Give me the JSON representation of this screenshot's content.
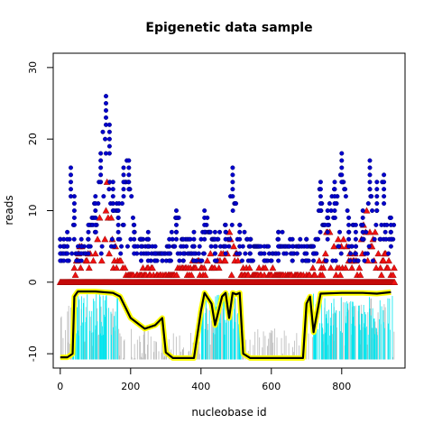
{
  "chart_data": {
    "type": "scatter",
    "title": "Epigenetic data sample",
    "xlabel": "nucleobase id",
    "ylabel": "reads",
    "xlim": [
      -20,
      980
    ],
    "ylim": [
      -12,
      32
    ],
    "x_ticks": [
      0,
      200,
      400,
      600,
      800
    ],
    "y_ticks": [
      -10,
      0,
      10,
      20,
      30
    ],
    "x_tick_labels": [
      "0",
      "200",
      "400",
      "600",
      "800"
    ],
    "y_tick_labels": [
      "-10",
      "0",
      "10",
      "20",
      "30"
    ],
    "grid": false,
    "legend": "none",
    "x_range_points": [
      0,
      950
    ],
    "colors": {
      "blue_series": "#0000cc",
      "red_series": "#ee1111",
      "cyan_series": "#00e5ee",
      "gray_series": "#b8b8b8",
      "yellow_band": "#ffff00",
      "black_line": "#000000"
    },
    "series": [
      {
        "marker": "circle",
        "segments": [
          {
            "x": [
              0,
              10,
              20,
              30,
              40,
              60,
              80,
              100,
              115,
              130,
              140,
              150,
              165,
              180,
              195,
              210,
              230,
              250,
              270,
              290,
              310,
              330,
              350,
              380,
              410,
              440,
              470,
              490,
              510,
              540,
              580,
              620,
              660,
              700,
              720,
              740,
              760,
              780,
              800,
              820,
              840,
              860,
              880,
              900,
              920,
              940
            ],
            "y": [
              6,
              6,
              7,
              16,
              12,
              6,
              8,
              12,
              18,
              26,
              22,
              14,
              10,
              16,
              17,
              8,
              6,
              7,
              5,
              4,
              6,
              10,
              6,
              7,
              10,
              7,
              8,
              16,
              8,
              6,
              5,
              7,
              6,
              6,
              5,
              14,
              10,
              14,
              18,
              9,
              8,
              10,
              17,
              14,
              15,
              9
            ]
          }
        ]
      },
      {
        "marker": "triangle",
        "segments": [
          {
            "x": [
              40,
              60,
              80,
              100,
              115,
              130,
              140,
              150,
              170,
              200,
              240,
              300,
              340,
              390,
              430,
              480,
              520,
              700,
              740,
              760,
              780,
              800,
              820,
              840,
              860,
              880,
              900,
              920,
              940
            ],
            "y": [
              3,
              6,
              4,
              5,
              11,
              16,
              22,
              8,
              3,
              1,
              2,
              1,
              2,
              3,
              5,
              7,
              2,
              1,
              4,
              8,
              6,
              8,
              5,
              4,
              12,
              10,
              8,
              5,
              2
            ]
          }
        ]
      },
      {
        "style": "line",
        "segments": [
          {
            "x": [
              0,
              20,
              35,
              40,
              50,
              100,
              150,
              170,
              200,
              240,
              270,
              290,
              300,
              320,
              360,
              380,
              400,
              410,
              430,
              440,
              460,
              470,
              480,
              490,
              500,
              510,
              520,
              540,
              600,
              690,
              700,
              710,
              720,
              740,
              800,
              860,
              900,
              940
            ],
            "y": [
              -10.5,
              -10.5,
              -10,
              -2,
              -1.3,
              -1.3,
              -1.5,
              -2,
              -5,
              -6.5,
              -6,
              -5,
              -9.8,
              -10.6,
              -10.6,
              -10.6,
              -4,
              -1.5,
              -3,
              -6,
              -2,
              -1.5,
              -5,
              -1.5,
              -1.7,
              -1.5,
              -10,
              -10.6,
              -10.6,
              -10.6,
              -3,
              -2,
              -7,
              -1.6,
              -1.5,
              -1.5,
              -1.6,
              -1.4
            ]
          }
        ]
      }
    ]
  }
}
